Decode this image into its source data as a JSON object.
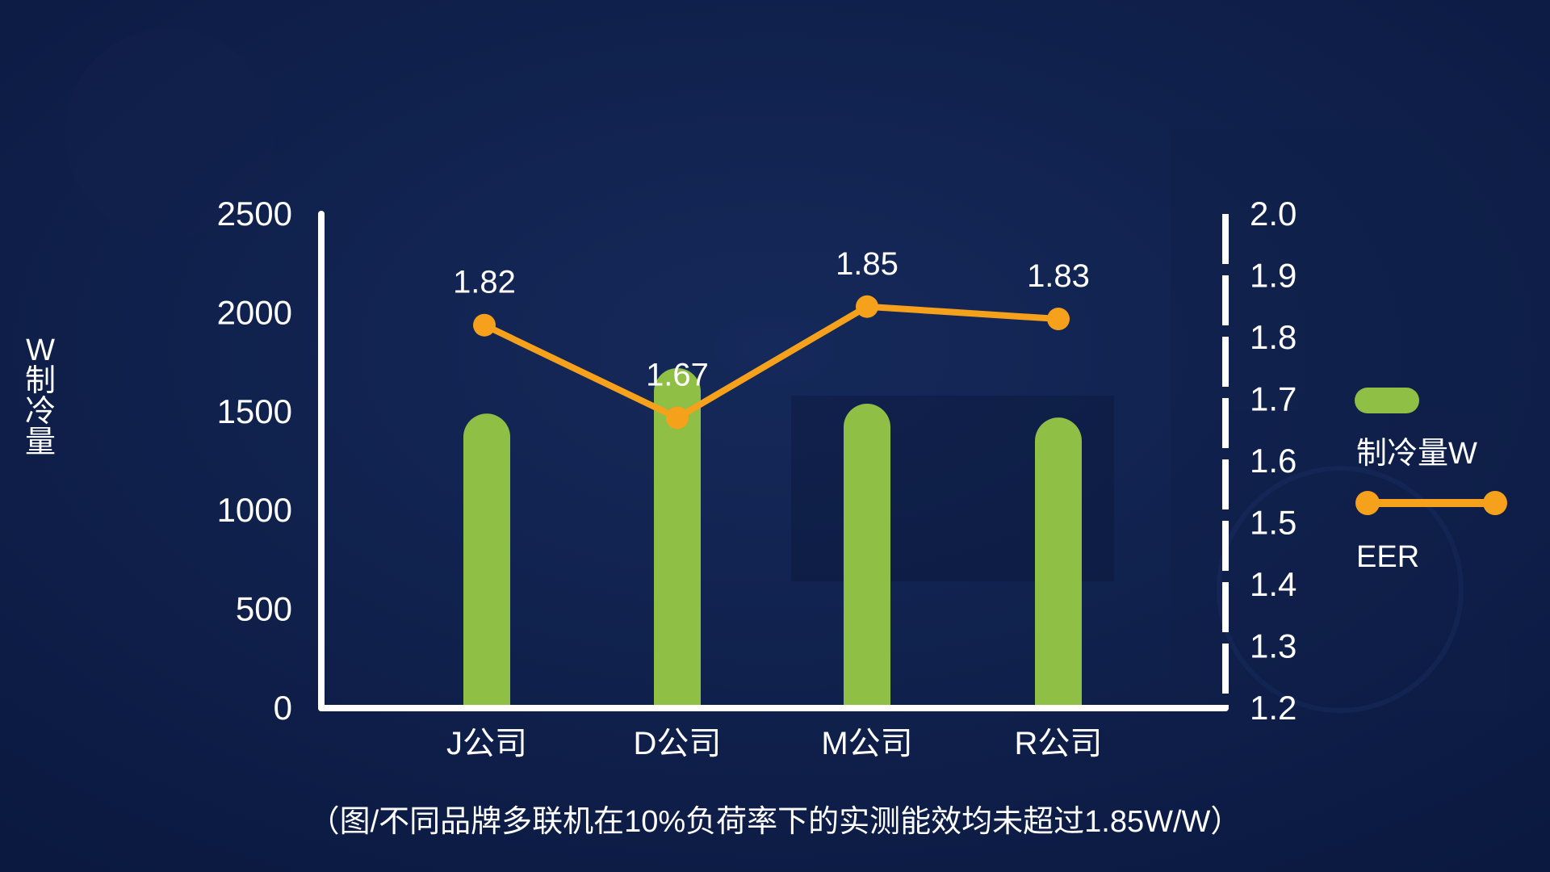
{
  "chart_data": {
    "type": "bar",
    "categories": [
      "J公司",
      "D公司",
      "M公司",
      "R公司"
    ],
    "series": [
      {
        "name": "制冷量W",
        "type": "bar",
        "axis": "left",
        "values": [
          1490,
          1720,
          1540,
          1470
        ]
      },
      {
        "name": "EER",
        "type": "line",
        "axis": "right",
        "values": [
          1.82,
          1.67,
          1.85,
          1.83
        ]
      }
    ],
    "data_labels": [
      "1.82",
      "1.67",
      "1.85",
      "1.83"
    ],
    "left_axis": {
      "label": "W制冷量",
      "range": [
        0,
        2500
      ],
      "ticks": [
        "0",
        "500",
        "1000",
        "1500",
        "2000",
        "2500"
      ]
    },
    "right_axis": {
      "range": [
        1.2,
        2.0
      ],
      "ticks": [
        "1.2",
        "1.3",
        "1.4",
        "1.5",
        "1.6",
        "1.7",
        "1.8",
        "1.9",
        "2.0"
      ]
    },
    "legend": {
      "placement": "right",
      "items": [
        "制冷量W",
        "EER"
      ]
    },
    "caption": "（图/不同品牌多联机在10%负荷率下的实测能效均未超过1.85W/W）",
    "colors": {
      "bar": "#8fbf45",
      "line": "#f5a11c",
      "axis": "#ffffff",
      "background": "#0d1d45",
      "text": "#ffffff"
    }
  }
}
